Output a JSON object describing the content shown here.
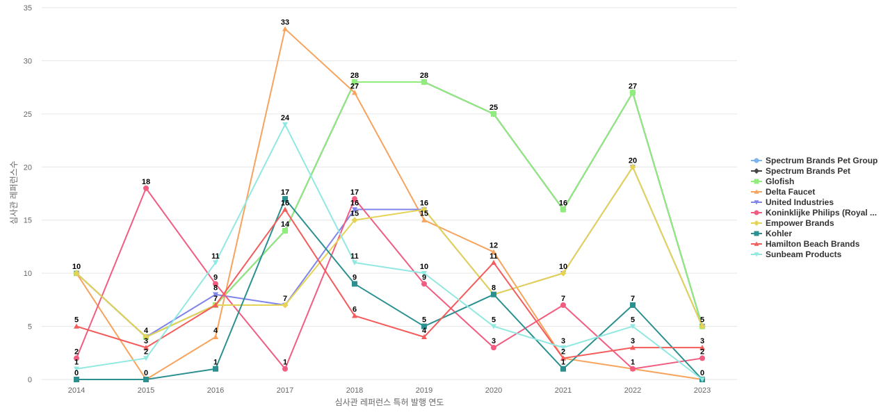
{
  "chart_data": {
    "type": "line",
    "xlabel": "심사관 레퍼런스 특허 발행 연도",
    "ylabel": "심사관 레퍼런스수",
    "x": [
      "2014",
      "2015",
      "2016",
      "2017",
      "2018",
      "2019",
      "2020",
      "2021",
      "2022",
      "2023"
    ],
    "ylim": [
      0,
      35
    ],
    "yticks": [
      0,
      5,
      10,
      15,
      20,
      25,
      30,
      35
    ],
    "grid": true,
    "legend_position": "right",
    "series": [
      {
        "name": "Spectrum Brands Pet Group",
        "color": "#7cb5ec",
        "marker": "circle",
        "values": [
          10,
          4,
          7,
          14,
          28,
          28,
          25,
          16,
          27,
          5
        ]
      },
      {
        "name": "Spectrum Brands Pet",
        "color": "#434348",
        "marker": "diamond",
        "values": [
          10,
          4,
          7,
          14,
          28,
          28,
          25,
          16,
          27,
          5
        ]
      },
      {
        "name": "Glofish",
        "color": "#90ed7d",
        "marker": "square",
        "values": [
          10,
          4,
          7,
          14,
          28,
          28,
          25,
          16,
          27,
          5
        ]
      },
      {
        "name": "Delta Faucet",
        "color": "#f7a35c",
        "marker": "triangle",
        "values": [
          10,
          0,
          4,
          33,
          27,
          15,
          12,
          2,
          1,
          0
        ]
      },
      {
        "name": "United Industries",
        "color": "#8085e9",
        "marker": "triangle-down",
        "values": [
          10,
          4,
          8,
          7,
          16,
          16,
          8,
          10,
          20,
          5
        ]
      },
      {
        "name": "Koninklijke Philips (Royal ...",
        "color": "#f15c80",
        "marker": "circle",
        "values": [
          2,
          18,
          9,
          1,
          17,
          9,
          3,
          7,
          1,
          2
        ]
      },
      {
        "name": "Empower Brands",
        "color": "#e4d354",
        "marker": "diamond",
        "values": [
          10,
          4,
          7,
          7,
          15,
          16,
          8,
          10,
          20,
          5
        ]
      },
      {
        "name": "Kohler",
        "color": "#2b908f",
        "marker": "square",
        "values": [
          0,
          0,
          1,
          17,
          9,
          5,
          8,
          1,
          7,
          0
        ]
      },
      {
        "name": "Hamilton Beach Brands",
        "color": "#f45b5b",
        "marker": "triangle",
        "values": [
          5,
          3,
          7,
          16,
          6,
          4,
          11,
          2,
          3,
          3
        ]
      },
      {
        "name": "Sunbeam Products",
        "color": "#91e8e1",
        "marker": "triangle-down",
        "values": [
          1,
          2,
          11,
          24,
          11,
          10,
          5,
          3,
          5,
          0
        ]
      }
    ],
    "data_labels": [
      {
        "x": "2014",
        "value": 10
      },
      {
        "x": "2014",
        "value": 5
      },
      {
        "x": "2014",
        "value": 2
      },
      {
        "x": "2014",
        "value": 1
      },
      {
        "x": "2014",
        "value": 0
      },
      {
        "x": "2015",
        "value": 18
      },
      {
        "x": "2015",
        "value": 4
      },
      {
        "x": "2015",
        "value": 3
      },
      {
        "x": "2015",
        "value": 2
      },
      {
        "x": "2015",
        "value": 0
      },
      {
        "x": "2016",
        "value": 11
      },
      {
        "x": "2016",
        "value": 9
      },
      {
        "x": "2016",
        "value": 8
      },
      {
        "x": "2016",
        "value": 7
      },
      {
        "x": "2016",
        "value": 4
      },
      {
        "x": "2016",
        "value": 1
      },
      {
        "x": "2017",
        "value": 33
      },
      {
        "x": "2017",
        "value": 24
      },
      {
        "x": "2017",
        "value": 17
      },
      {
        "x": "2017",
        "value": 16
      },
      {
        "x": "2017",
        "value": 14
      },
      {
        "x": "2017",
        "value": 7
      },
      {
        "x": "2017",
        "value": 1
      },
      {
        "x": "2018",
        "value": 28
      },
      {
        "x": "2018",
        "value": 27
      },
      {
        "x": "2018",
        "value": 17
      },
      {
        "x": "2018",
        "value": 16
      },
      {
        "x": "2018",
        "value": 15
      },
      {
        "x": "2018",
        "value": 11
      },
      {
        "x": "2018",
        "value": 9
      },
      {
        "x": "2018",
        "value": 6
      },
      {
        "x": "2019",
        "value": 28
      },
      {
        "x": "2019",
        "value": 16
      },
      {
        "x": "2019",
        "value": 15
      },
      {
        "x": "2019",
        "value": 10
      },
      {
        "x": "2019",
        "value": 9
      },
      {
        "x": "2019",
        "value": 5
      },
      {
        "x": "2019",
        "value": 4
      },
      {
        "x": "2020",
        "value": 25
      },
      {
        "x": "2020",
        "value": 12
      },
      {
        "x": "2020",
        "value": 11
      },
      {
        "x": "2020",
        "value": 8
      },
      {
        "x": "2020",
        "value": 5
      },
      {
        "x": "2020",
        "value": 3
      },
      {
        "x": "2021",
        "value": 16
      },
      {
        "x": "2021",
        "value": 10
      },
      {
        "x": "2021",
        "value": 7
      },
      {
        "x": "2021",
        "value": 3
      },
      {
        "x": "2021",
        "value": 2
      },
      {
        "x": "2021",
        "value": 1
      },
      {
        "x": "2022",
        "value": 27
      },
      {
        "x": "2022",
        "value": 20
      },
      {
        "x": "2022",
        "value": 7
      },
      {
        "x": "2022",
        "value": 5
      },
      {
        "x": "2022",
        "value": 3
      },
      {
        "x": "2022",
        "value": 1
      },
      {
        "x": "2023",
        "value": 5
      },
      {
        "x": "2023",
        "value": 3
      },
      {
        "x": "2023",
        "value": 2
      },
      {
        "x": "2023",
        "value": 0
      }
    ]
  }
}
